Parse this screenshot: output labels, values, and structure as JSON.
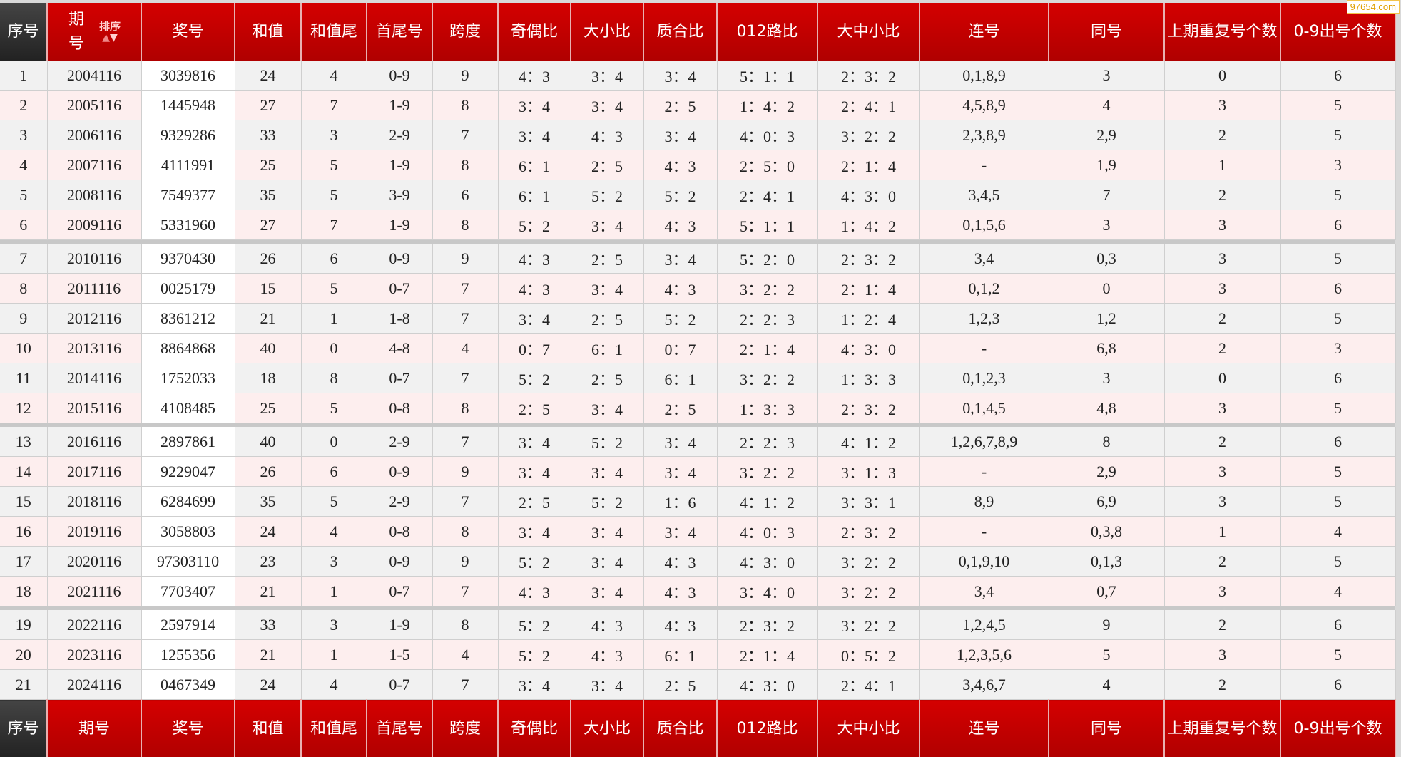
{
  "watermark": "97654.com",
  "sort_label": "排序",
  "headers": [
    "序号",
    "期号",
    "奖号",
    "和值",
    "和值尾",
    "首尾号",
    "跨度",
    "奇偶比",
    "大小比",
    "质合比",
    "012路比",
    "大中小比",
    "连号",
    "同号",
    "上期重复号个数",
    "0-9出号个数"
  ],
  "rows": [
    [
      "1",
      "2004116",
      "3039816",
      "24",
      "4",
      "0-9",
      "9",
      "4：3",
      "3：4",
      "3：4",
      "5：1：1",
      "2：3：2",
      "0,1,8,9",
      "3",
      "0",
      "6"
    ],
    [
      "2",
      "2005116",
      "1445948",
      "27",
      "7",
      "1-9",
      "8",
      "3：4",
      "3：4",
      "2：5",
      "1：4：2",
      "2：4：1",
      "4,5,8,9",
      "4",
      "3",
      "5"
    ],
    [
      "3",
      "2006116",
      "9329286",
      "33",
      "3",
      "2-9",
      "7",
      "3：4",
      "4：3",
      "3：4",
      "4：0：3",
      "3：2：2",
      "2,3,8,9",
      "2,9",
      "2",
      "5"
    ],
    [
      "4",
      "2007116",
      "4111991",
      "25",
      "5",
      "1-9",
      "8",
      "6：1",
      "2：5",
      "4：3",
      "2：5：0",
      "2：1：4",
      "-",
      "1,9",
      "1",
      "3"
    ],
    [
      "5",
      "2008116",
      "7549377",
      "35",
      "5",
      "3-9",
      "6",
      "6：1",
      "5：2",
      "5：2",
      "2：4：1",
      "4：3：0",
      "3,4,5",
      "7",
      "2",
      "5"
    ],
    [
      "6",
      "2009116",
      "5331960",
      "27",
      "7",
      "1-9",
      "8",
      "5：2",
      "3：4",
      "4：3",
      "5：1：1",
      "1：4：2",
      "0,1,5,6",
      "3",
      "3",
      "6"
    ],
    [
      "7",
      "2010116",
      "9370430",
      "26",
      "6",
      "0-9",
      "9",
      "4：3",
      "2：5",
      "3：4",
      "5：2：0",
      "2：3：2",
      "3,4",
      "0,3",
      "3",
      "5"
    ],
    [
      "8",
      "2011116",
      "0025179",
      "15",
      "5",
      "0-7",
      "7",
      "4：3",
      "3：4",
      "4：3",
      "3：2：2",
      "2：1：4",
      "0,1,2",
      "0",
      "3",
      "6"
    ],
    [
      "9",
      "2012116",
      "8361212",
      "21",
      "1",
      "1-8",
      "7",
      "3：4",
      "2：5",
      "5：2",
      "2：2：3",
      "1：2：4",
      "1,2,3",
      "1,2",
      "2",
      "5"
    ],
    [
      "10",
      "2013116",
      "8864868",
      "40",
      "0",
      "4-8",
      "4",
      "0：7",
      "6：1",
      "0：7",
      "2：1：4",
      "4：3：0",
      "-",
      "6,8",
      "2",
      "3"
    ],
    [
      "11",
      "2014116",
      "1752033",
      "18",
      "8",
      "0-7",
      "7",
      "5：2",
      "2：5",
      "6：1",
      "3：2：2",
      "1：3：3",
      "0,1,2,3",
      "3",
      "0",
      "6"
    ],
    [
      "12",
      "2015116",
      "4108485",
      "25",
      "5",
      "0-8",
      "8",
      "2：5",
      "3：4",
      "2：5",
      "1：3：3",
      "2：3：2",
      "0,1,4,5",
      "4,8",
      "3",
      "5"
    ],
    [
      "13",
      "2016116",
      "2897861",
      "40",
      "0",
      "2-9",
      "7",
      "3：4",
      "5：2",
      "3：4",
      "2：2：3",
      "4：1：2",
      "1,2,6,7,8,9",
      "8",
      "2",
      "6"
    ],
    [
      "14",
      "2017116",
      "9229047",
      "26",
      "6",
      "0-9",
      "9",
      "3：4",
      "3：4",
      "3：4",
      "3：2：2",
      "3：1：3",
      "-",
      "2,9",
      "3",
      "5"
    ],
    [
      "15",
      "2018116",
      "6284699",
      "35",
      "5",
      "2-9",
      "7",
      "2：5",
      "5：2",
      "1：6",
      "4：1：2",
      "3：3：1",
      "8,9",
      "6,9",
      "3",
      "5"
    ],
    [
      "16",
      "2019116",
      "3058803",
      "24",
      "4",
      "0-8",
      "8",
      "3：4",
      "3：4",
      "3：4",
      "4：0：3",
      "2：3：2",
      "-",
      "0,3,8",
      "1",
      "4"
    ],
    [
      "17",
      "2020116",
      "97303110",
      "23",
      "3",
      "0-9",
      "9",
      "5：2",
      "3：4",
      "4：3",
      "4：3：0",
      "3：2：2",
      "0,1,9,10",
      "0,1,3",
      "2",
      "5"
    ],
    [
      "18",
      "2021116",
      "7703407",
      "21",
      "1",
      "0-7",
      "7",
      "4：3",
      "3：4",
      "4：3",
      "3：4：0",
      "3：2：2",
      "3,4",
      "0,7",
      "3",
      "4"
    ],
    [
      "19",
      "2022116",
      "2597914",
      "33",
      "3",
      "1-9",
      "8",
      "5：2",
      "4：3",
      "4：3",
      "2：3：2",
      "3：2：2",
      "1,2,4,5",
      "9",
      "2",
      "6"
    ],
    [
      "20",
      "2023116",
      "1255356",
      "21",
      "1",
      "1-5",
      "4",
      "5：2",
      "4：3",
      "6：1",
      "2：1：4",
      "0：5：2",
      "1,2,3,5,6",
      "5",
      "3",
      "5"
    ],
    [
      "21",
      "2024116",
      "0467349",
      "24",
      "4",
      "0-7",
      "7",
      "3：4",
      "3：4",
      "2：5",
      "4：3：0",
      "2：4：1",
      "3,4,6,7",
      "4",
      "2",
      "6"
    ]
  ]
}
